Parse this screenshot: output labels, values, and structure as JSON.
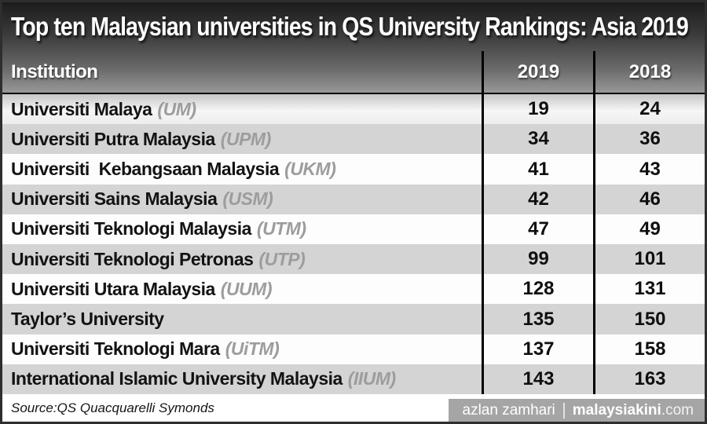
{
  "title": "Top ten Malaysian universities in QS University Rankings: Asia 2019",
  "table": {
    "columns": [
      "Institution",
      "2019",
      "2018"
    ],
    "rows": [
      {
        "name": "Universiti Malaya",
        "abbr": "(UM)",
        "r2019": "19",
        "r2018": "24"
      },
      {
        "name": "Universiti Putra Malaysia",
        "abbr": "(UPM)",
        "r2019": "34",
        "r2018": "36"
      },
      {
        "name": "Universiti  Kebangsaan Malaysia",
        "abbr": "(UKM)",
        "r2019": "41",
        "r2018": "43"
      },
      {
        "name": "Universiti Sains Malaysia",
        "abbr": "(USM)",
        "r2019": "42",
        "r2018": "46"
      },
      {
        "name": "Universiti Teknologi Malaysia",
        "abbr": "(UTM)",
        "r2019": "47",
        "r2018": "49"
      },
      {
        "name": "Universiti Teknologi Petronas",
        "abbr": "(UTP)",
        "r2019": "99",
        "r2018": "101"
      },
      {
        "name": "Universiti Utara Malaysia",
        "abbr": "(UUM)",
        "r2019": "128",
        "r2018": "131"
      },
      {
        "name": "Taylor’s University",
        "abbr": "",
        "r2019": "135",
        "r2018": "150"
      },
      {
        "name": "Universiti Teknologi Mara",
        "abbr": "(UiTM)",
        "r2019": "137",
        "r2018": "158"
      },
      {
        "name": "International Islamic University Malaysia",
        "abbr": "(IIUM)",
        "r2019": "143",
        "r2018": "163"
      }
    ]
  },
  "footer": {
    "source": "Source:QS Quacquarelli Symonds",
    "credit": "azlan zamhari",
    "brand": "malaysiakini",
    "brand_suffix": ".com"
  },
  "colors": {
    "header_gradient_top": "#1c1c1c",
    "header_gradient_bottom": "#989898",
    "column_divider": "#000000",
    "row_stripe_gray": "#d4d4d4",
    "row_plain": "#fdfdfd",
    "abbr_text": "#9d9d9d",
    "badge_background": "#a5a5a5",
    "badge_text": "#ffffff",
    "title_text": "#ffffff"
  },
  "chart_data": {
    "type": "table",
    "title": "Top ten Malaysian universities in QS University Rankings: Asia 2019",
    "columns": [
      "Institution",
      "2019",
      "2018"
    ],
    "rows": [
      [
        "Universiti Malaya (UM)",
        19,
        24
      ],
      [
        "Universiti Putra Malaysia (UPM)",
        34,
        36
      ],
      [
        "Universiti Kebangsaan Malaysia (UKM)",
        41,
        43
      ],
      [
        "Universiti Sains Malaysia (USM)",
        42,
        46
      ],
      [
        "Universiti Teknologi Malaysia (UTM)",
        47,
        49
      ],
      [
        "Universiti Teknologi Petronas (UTP)",
        99,
        101
      ],
      [
        "Universiti Utara Malaysia (UUM)",
        128,
        131
      ],
      [
        "Taylor’s University",
        135,
        150
      ],
      [
        "Universiti Teknologi Mara (UiTM)",
        137,
        158
      ],
      [
        "International Islamic University Malaysia (IIUM)",
        143,
        163
      ]
    ],
    "source": "QS Quacquarelli Symonds"
  }
}
